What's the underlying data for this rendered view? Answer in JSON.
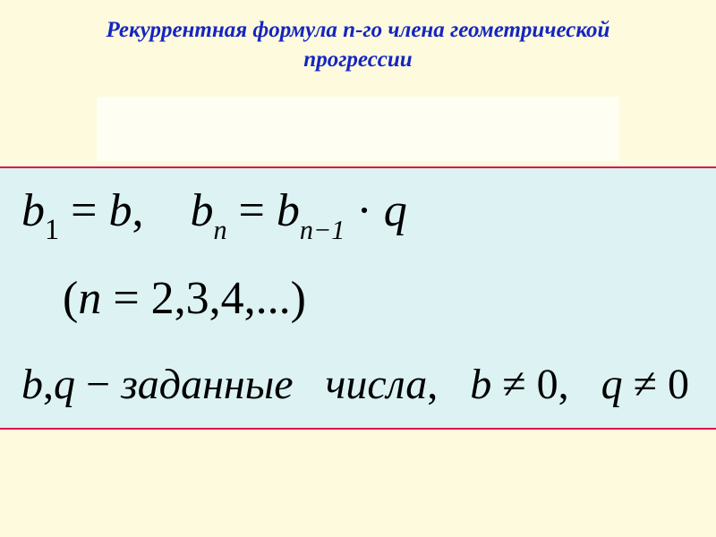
{
  "colors": {
    "page_bg": "#fdfade",
    "inner_bg": "#fefef2",
    "formula_bg": "#dcf2f3",
    "border": "#d8154d",
    "title": "#1525c0",
    "text": "#000000"
  },
  "title": {
    "line1": "Рекуррентная формула n-го члена геометрической",
    "line2": "прогрессии",
    "fontsize": 25
  },
  "formula": {
    "fontsize_main": 52,
    "fontsize_line3": 48,
    "line1": {
      "b": "b",
      "sub1": "1",
      "eq": " = ",
      "bv": "b",
      "comma": ",",
      "gap": "    ",
      "bn": "b",
      "subn": "n",
      "eq2": " = ",
      "bn1": "b",
      "subn1": "n−1",
      "dot": " · ",
      "q": "q"
    },
    "line2": {
      "open": "(",
      "n": "n",
      "eq": " = ",
      "vals": "2,3,4,...",
      "close": ")"
    },
    "line3": {
      "b": "b",
      "c1": ",",
      "q": "q",
      "dash": " − ",
      "word1": "заданные",
      "gap": "   ",
      "word2": "числа",
      "c2": ",",
      "gap2": "   ",
      "b2": "b",
      "ne1": " ≠ ",
      "z1": "0,",
      "gap3": "   ",
      "q2": "q",
      "ne2": " ≠ ",
      "z2": "0"
    }
  }
}
